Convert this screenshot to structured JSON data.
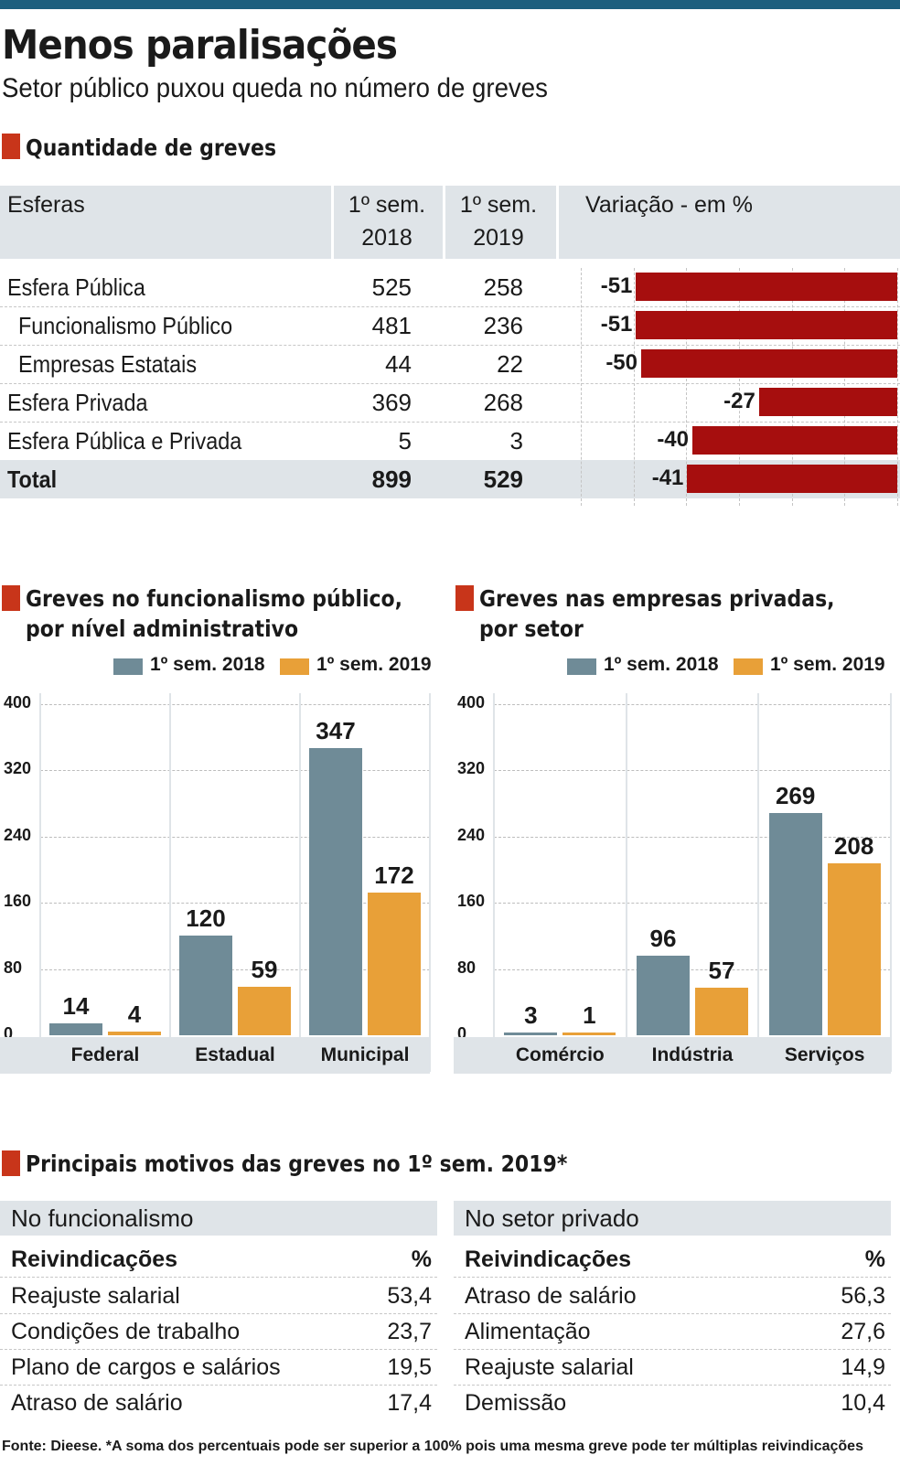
{
  "header": {
    "title": "Menos paralisações",
    "subtitle": "Setor público puxou queda no número de greves"
  },
  "colors": {
    "accent": "#c8351a",
    "bar_2018": "#6f8b97",
    "bar_2019": "#e8a038",
    "variation_bar": "#a60e0e",
    "panel_bg": "#dfe4e8"
  },
  "table1": {
    "section": "Quantidade de greves",
    "headers": {
      "esferas": "Esferas",
      "s2018_l1": "1º sem.",
      "s2018_l2": "2018",
      "s2019_l1": "1º sem.",
      "s2019_l2": "2019",
      "variacao": "Variação - em %"
    },
    "rows": [
      {
        "label": "Esfera Pública",
        "v2018": "525",
        "v2019": "258",
        "var_label": "-51",
        "var": -51
      },
      {
        "label": "Funcionalismo Público",
        "v2018": "481",
        "v2019": "236",
        "var_label": "-51",
        "var": -51
      },
      {
        "label": "Empresas Estatais",
        "v2018": "44",
        "v2019": "22",
        "var_label": "-50",
        "var": -50
      },
      {
        "label": "Esfera Privada",
        "v2018": "369",
        "v2019": "268",
        "var_label": "-27",
        "var": -27
      },
      {
        "label": "Esfera Pública e Privada",
        "v2018": "5",
        "v2019": "3",
        "var_label": "-40",
        "var": -40
      }
    ],
    "total": {
      "label": "Total",
      "v2018": "899",
      "v2019": "529",
      "var_label": "-41",
      "var": -41
    }
  },
  "chart_data": [
    {
      "type": "bar",
      "title": "Greves no funcionalismo público, por nível administrativo",
      "title_l1": "Greves no funcionalismo público,",
      "title_l2": "por nível administrativo",
      "categories": [
        "Federal",
        "Estadual",
        "Municipal"
      ],
      "series": [
        {
          "name": "1º sem. 2018",
          "values": [
            14,
            120,
            347
          ]
        },
        {
          "name": "1º sem. 2019",
          "values": [
            4,
            59,
            172
          ]
        }
      ],
      "ylim": [
        0,
        400
      ],
      "yticks": [
        "400",
        "320",
        "240",
        "160",
        "80",
        "0"
      ],
      "grid": true,
      "legend": "top"
    },
    {
      "type": "bar",
      "title": "Greves nas empresas privadas, por setor",
      "title_l1": "Greves nas empresas privadas,",
      "title_l2": "por setor",
      "categories": [
        "Comércio",
        "Indústria",
        "Serviços"
      ],
      "series": [
        {
          "name": "1º sem. 2018",
          "values": [
            3,
            96,
            269
          ]
        },
        {
          "name": "1º sem. 2019",
          "values": [
            1,
            57,
            208
          ]
        }
      ],
      "ylim": [
        0,
        400
      ],
      "yticks": [
        "400",
        "320",
        "240",
        "160",
        "80",
        "0"
      ],
      "grid": true,
      "legend": "top"
    },
    {
      "type": "table",
      "title": "Principais motivos das greves no 1º sem. 2019*",
      "tables": [
        {
          "heading": "No funcionalismo",
          "col_left": "Reivindicações",
          "col_right": "%",
          "rows": [
            {
              "label": "Reajuste salarial",
              "value": "53,4"
            },
            {
              "label": "Condições de trabalho",
              "value": "23,7"
            },
            {
              "label": "Plano de cargos e salários",
              "value": "19,5"
            },
            {
              "label": "Atraso de salário",
              "value": "17,4"
            }
          ]
        },
        {
          "heading": "No setor privado",
          "col_left": "Reivindicações",
          "col_right": "%",
          "rows": [
            {
              "label": "Atraso de salário",
              "value": "56,3"
            },
            {
              "label": "Alimentação",
              "value": "27,6"
            },
            {
              "label": "Reajuste salarial",
              "value": "14,9"
            },
            {
              "label": "Demissão",
              "value": "10,4"
            }
          ]
        }
      ]
    }
  ],
  "footer": "Fonte: Dieese. *A soma dos percentuais pode ser superior a 100% pois uma mesma greve pode ter múltiplas reivindicações"
}
